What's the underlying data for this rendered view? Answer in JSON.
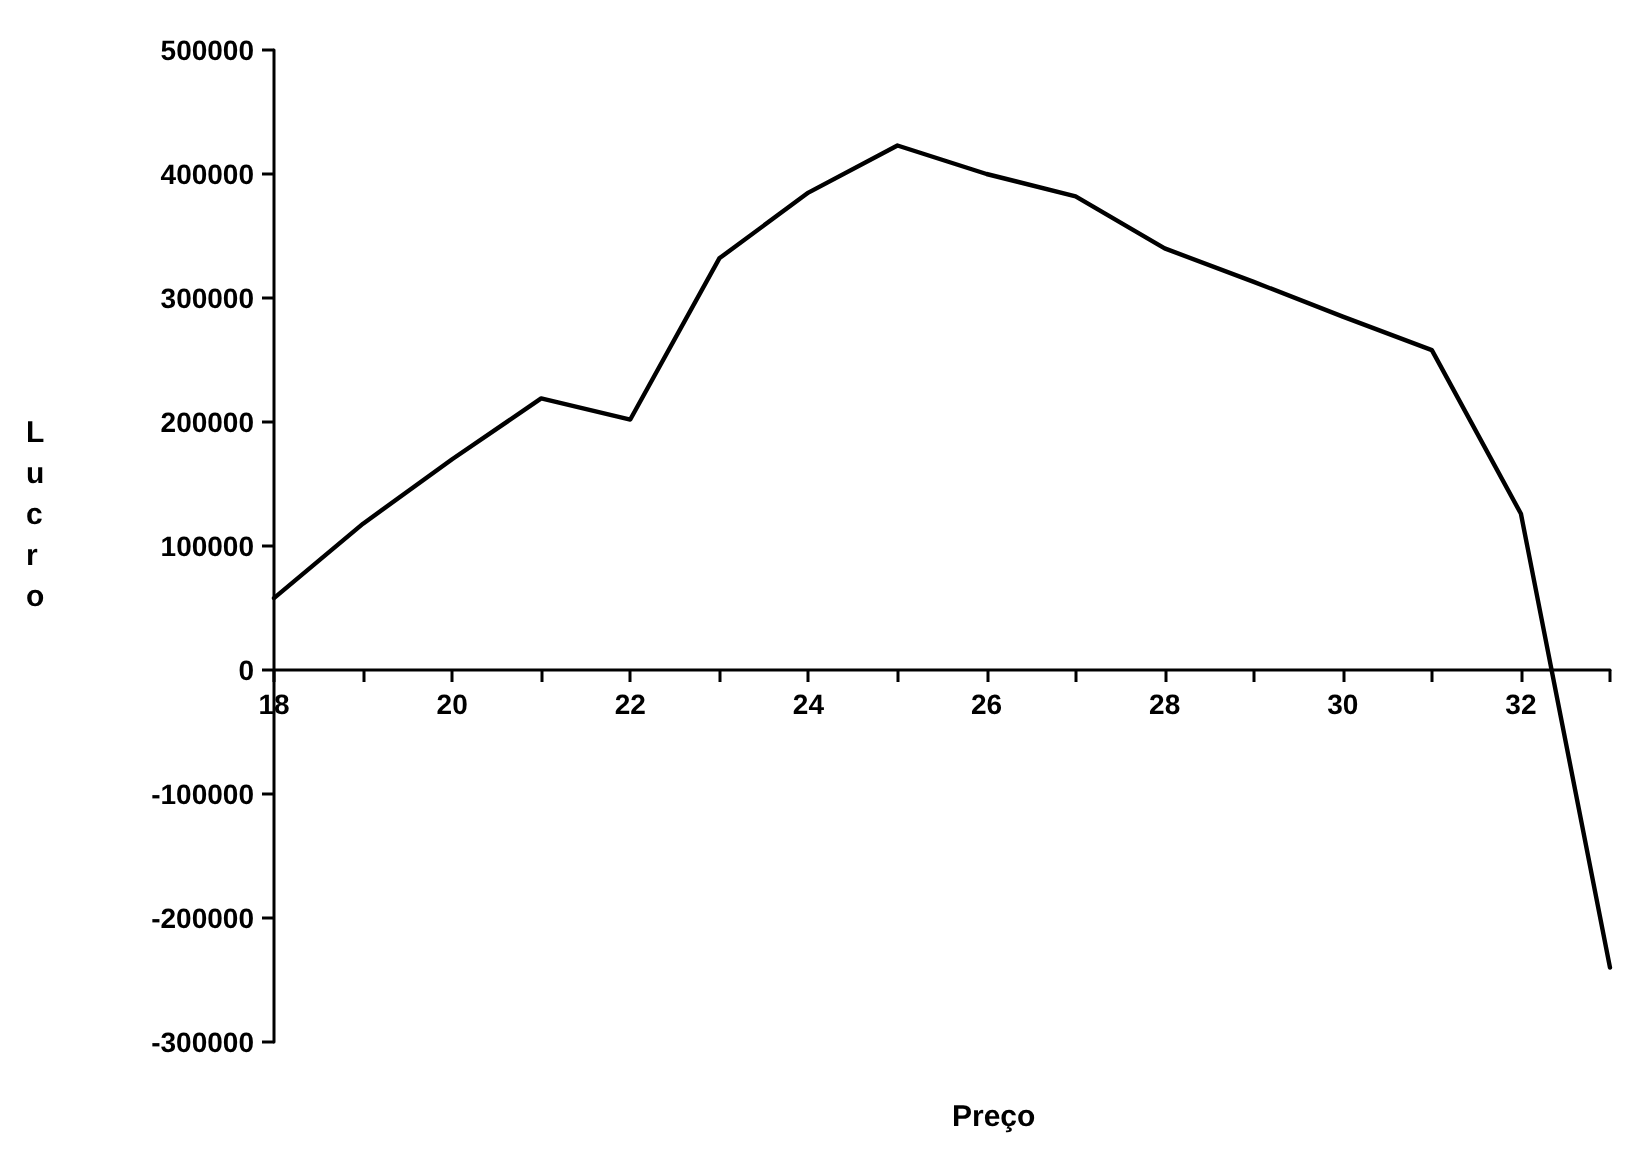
{
  "chart_data": {
    "type": "line",
    "xlabel": "Preço",
    "ylabel": "Lucro",
    "x": [
      18,
      19,
      20,
      21,
      22,
      23,
      24,
      25,
      26,
      27,
      28,
      29,
      30,
      31,
      32,
      33
    ],
    "series": [
      {
        "color": "#000000",
        "values": [
          58000,
          118000,
          170000,
          219000,
          202000,
          332000,
          385000,
          423000,
          400000,
          382000,
          340000,
          313000,
          285000,
          258000,
          126000,
          -240000
        ]
      }
    ],
    "xlim": [
      18,
      33
    ],
    "xticks": [
      18,
      {
        "value": 19,
        "label": null
      },
      20,
      {
        "value": 21,
        "label": null
      },
      22,
      {
        "value": 23,
        "label": null
      },
      24,
      {
        "value": 25,
        "label": null
      },
      26,
      {
        "value": 27,
        "label": null
      },
      28,
      {
        "value": 29,
        "label": null
      },
      30,
      {
        "value": 31,
        "label": null
      },
      32,
      {
        "value": 33,
        "label": null
      }
    ],
    "ylim": [
      -300000,
      500000
    ],
    "yticks": [
      -300000,
      -200000,
      -100000,
      0,
      100000,
      200000,
      300000,
      400000,
      500000
    ],
    "marker": "none",
    "line_style": "solid"
  }
}
